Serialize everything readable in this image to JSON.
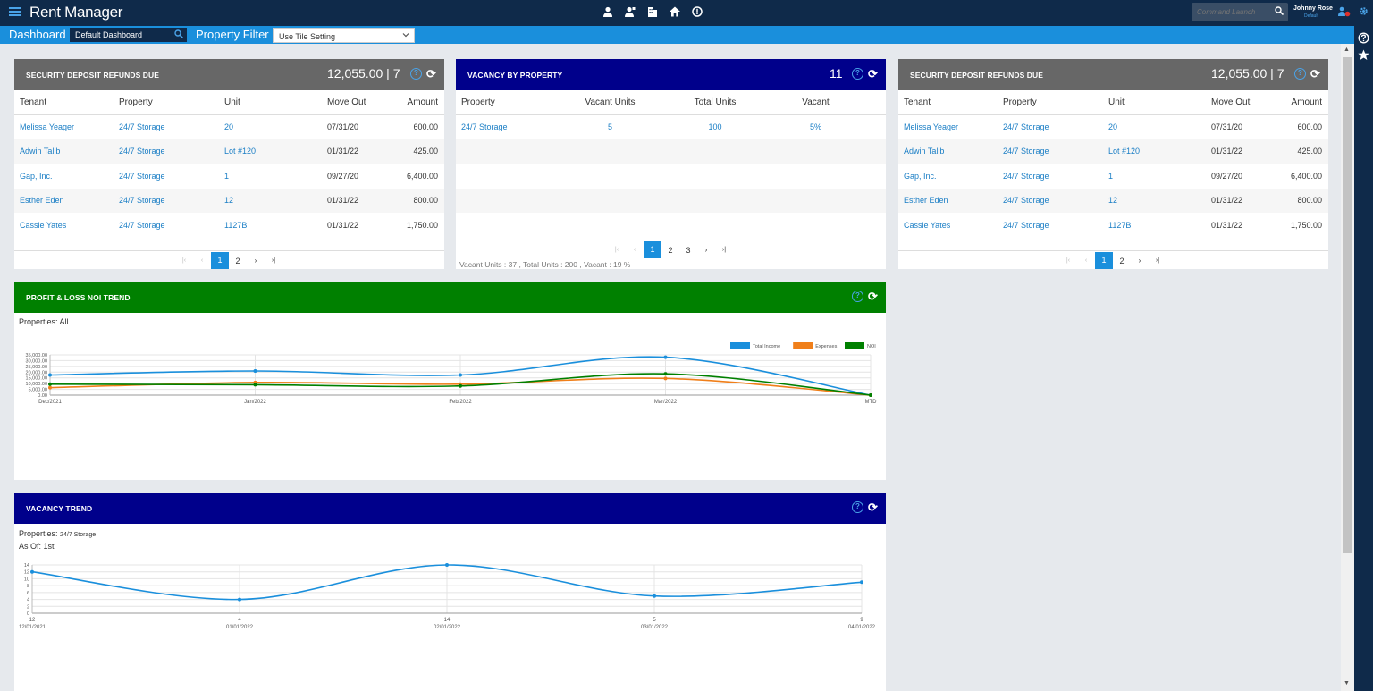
{
  "app": {
    "title": "Rent Manager"
  },
  "topbar": {
    "command_placeholder": "Command Launch",
    "user_name": "Johnny Rose",
    "user_role": "Default"
  },
  "subbar": {
    "dashboard_label": "Dashboard",
    "dashboard_value": "Default Dashboard",
    "filter_label": "Property Filter",
    "filter_value": "Use Tile Setting"
  },
  "deposit_tile": {
    "title": "SECURITY DEPOSIT REFUNDS DUE",
    "total": "12,055.00",
    "count": "7",
    "headers": [
      "Tenant",
      "Property",
      "Unit",
      "Move Out",
      "Amount"
    ],
    "rows": [
      {
        "tenant": "Melissa Yeager",
        "property": "24/7 Storage",
        "unit": "20",
        "move_out": "07/31/20",
        "amount": "600.00"
      },
      {
        "tenant": "Adwin Talib",
        "property": "24/7 Storage",
        "unit": "Lot #120",
        "move_out": "01/31/22",
        "amount": "425.00"
      },
      {
        "tenant": "Gap, Inc.",
        "property": "24/7 Storage",
        "unit": "1",
        "move_out": "09/27/20",
        "amount": "6,400.00"
      },
      {
        "tenant": "Esther Eden",
        "property": "24/7 Storage",
        "unit": "12",
        "move_out": "01/31/22",
        "amount": "800.00"
      },
      {
        "tenant": "Cassie Yates",
        "property": "24/7 Storage",
        "unit": "1127B",
        "move_out": "01/31/22",
        "amount": "1,750.00"
      }
    ],
    "pages": [
      "1",
      "2"
    ]
  },
  "vacancy_tile": {
    "title": "VACANCY BY PROPERTY",
    "count": "11",
    "headers": [
      "Property",
      "Vacant Units",
      "Total Units",
      "Vacant"
    ],
    "rows": [
      {
        "property": "24/7 Storage",
        "vacant_units": "5",
        "total_units": "100",
        "vacant": "5%"
      }
    ],
    "pages": [
      "1",
      "2",
      "3"
    ],
    "summary": "Vacant Units : 37 , Total Units : 200 , Vacant : 19 %"
  },
  "noi_tile": {
    "title": "PROFIT & LOSS NOI TREND",
    "properties_label": "Properties:",
    "properties_value": "All"
  },
  "vacancy_trend_tile": {
    "title": "VACANCY TREND",
    "properties_label": "Properties:",
    "properties_value": "24/7 Storage",
    "as_of_label": "As Of:",
    "as_of_value": "1st"
  },
  "chart_data": [
    {
      "type": "line",
      "x": [
        "Dec/2021",
        "Jan/2022",
        "Feb/2022",
        "Mar/2022",
        "MTD"
      ],
      "series": [
        {
          "name": "Total Income",
          "color": "#1a8fdc",
          "values": [
            17500,
            21000,
            17500,
            33000,
            0
          ]
        },
        {
          "name": "Expenses",
          "color": "#f07f1a",
          "values": [
            6500,
            11000,
            9500,
            14500,
            0
          ]
        },
        {
          "name": "NOI",
          "color": "#008000",
          "values": [
            9500,
            9000,
            8000,
            18500,
            0
          ]
        }
      ],
      "y_ticks": [
        "35,000.00",
        "30,000.00",
        "25,000.00",
        "20,000.00",
        "15,000.00",
        "10,000.00",
        "5,000.00",
        "0.00"
      ],
      "ylim": [
        0,
        35000
      ],
      "legend": "top-right",
      "grid": true
    },
    {
      "type": "line",
      "x": [
        "12/01/2021",
        "01/01/2022",
        "02/01/2022",
        "03/01/2022",
        "04/01/2022"
      ],
      "point_labels": [
        "12",
        "4",
        "14",
        "5",
        "9"
      ],
      "series": [
        {
          "color": "#1a8fdc",
          "values": [
            12,
            4,
            14,
            5,
            9
          ]
        }
      ],
      "y_ticks": [
        "14",
        "12",
        "10",
        "8",
        "6",
        "4",
        "2",
        "0"
      ],
      "ylim": [
        0,
        14
      ],
      "grid": true
    }
  ]
}
